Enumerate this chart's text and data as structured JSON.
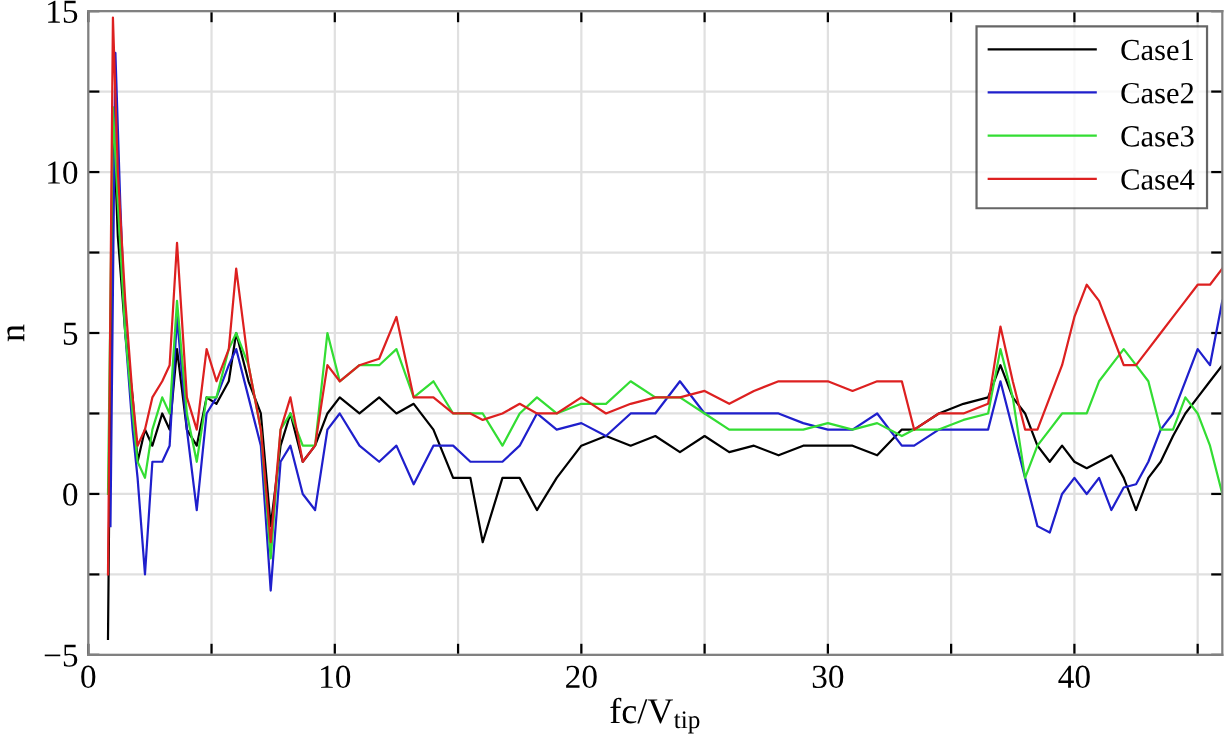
{
  "chart_data": {
    "type": "line",
    "xlabel": "fc/V$_{tip}$",
    "ylabel": "n",
    "x": [
      0.8,
      1.0,
      1.2,
      1.5,
      1.8,
      2.0,
      2.3,
      2.6,
      3.0,
      3.3,
      3.6,
      4.0,
      4.4,
      4.8,
      5.2,
      5.7,
      6.0,
      6.5,
      7.0,
      7.4,
      7.8,
      8.2,
      8.7,
      9.2,
      9.7,
      10.2,
      11,
      11.8,
      12.5,
      13.2,
      14,
      14.8,
      15.5,
      16,
      16.8,
      17.5,
      18.2,
      19,
      20,
      21,
      22,
      23,
      24,
      25,
      26,
      27,
      28,
      29,
      30,
      31,
      32,
      33,
      33.5,
      34.5,
      35.5,
      36.5,
      37,
      37.5,
      38,
      38.5,
      39,
      39.5,
      40,
      40.5,
      41,
      41.5,
      42,
      42.5,
      43,
      43.5,
      44,
      44.5,
      45,
      45.5,
      46
    ],
    "series": [
      {
        "name": "Case1",
        "color": "#000000",
        "values": [
          -4.5,
          12,
          8,
          5,
          3,
          1,
          2,
          1.5,
          2.5,
          2,
          4.5,
          2,
          1.5,
          3,
          2.8,
          3.5,
          5,
          3.5,
          2.5,
          -1,
          1.5,
          2.5,
          1,
          1.5,
          2.5,
          3,
          2.5,
          3,
          2.5,
          2.8,
          2,
          0.5,
          0.5,
          -1.5,
          0.5,
          0.5,
          -0.5,
          0.5,
          1.5,
          1.8,
          1.5,
          1.8,
          1.3,
          1.8,
          1.3,
          1.5,
          1.2,
          1.5,
          1.5,
          1.5,
          1.2,
          2,
          2,
          2.5,
          2.8,
          3,
          4,
          3,
          2.5,
          1.5,
          1,
          1.5,
          1,
          0.8,
          1,
          1.2,
          0.5,
          -0.5,
          0.5,
          1,
          1.8,
          2.5,
          3,
          3.5,
          4
        ]
      },
      {
        "name": "Case2",
        "color": "#1f1fcc",
        "x": [
          0.9,
          1.1,
          1.3,
          1.5,
          1.8,
          2.0,
          2.3,
          2.6,
          3.0,
          3.3,
          3.6,
          4.0,
          4.4,
          4.8,
          5.2,
          5.7,
          6.0,
          6.5,
          7.0,
          7.4,
          7.8,
          8.2,
          8.7,
          9.2,
          9.7,
          10.2,
          11,
          11.8,
          12.5,
          13.2,
          14,
          14.8,
          15.5,
          16,
          16.8,
          17.5,
          18.2,
          19,
          20,
          21,
          22,
          23,
          24,
          25,
          26,
          27,
          28,
          29,
          30,
          31,
          32,
          33,
          33.5,
          34.5,
          35.5,
          36.5,
          37,
          37.5,
          38,
          38.5,
          39,
          39.5,
          40,
          40.5,
          41,
          41.5,
          42,
          42.5,
          43,
          43.5,
          44,
          44.5,
          45,
          45.5,
          46
        ],
        "values": [
          -1,
          13.7,
          9,
          5,
          2,
          0.5,
          -2.5,
          1,
          1,
          1.5,
          5.5,
          2,
          -0.5,
          2.5,
          3,
          4,
          4.5,
          3,
          1.5,
          -3,
          1,
          1.5,
          0,
          -0.5,
          2,
          2.5,
          1.5,
          1,
          1.5,
          0.3,
          1.5,
          1.5,
          1,
          1,
          1,
          1.5,
          2.5,
          2,
          2.2,
          1.8,
          2.5,
          2.5,
          3.5,
          2.5,
          2.5,
          2.5,
          2.5,
          2.2,
          2,
          2,
          2.5,
          1.5,
          1.5,
          2,
          2,
          2,
          3.5,
          2,
          0.5,
          -1,
          -1.2,
          0,
          0.5,
          0,
          0.5,
          -0.5,
          0.2,
          0.3,
          1,
          2,
          2.5,
          3.5,
          4.5,
          4,
          6
        ]
      },
      {
        "name": "Case3",
        "color": "#33dd33",
        "values": [
          0,
          12,
          9,
          5,
          2.5,
          1,
          0.5,
          2,
          3,
          2.5,
          6,
          2.5,
          1,
          3,
          3,
          4.5,
          5,
          4,
          2,
          -2,
          2,
          2.5,
          1.5,
          1.5,
          5,
          3.5,
          4,
          4,
          4.5,
          3,
          3.5,
          2.5,
          2.5,
          2.5,
          1.5,
          2.5,
          3,
          2.5,
          2.8,
          2.8,
          3.5,
          3,
          3,
          2.5,
          2,
          2,
          2,
          2,
          2.2,
          2,
          2.2,
          1.8,
          2,
          2,
          2.3,
          2.5,
          4.5,
          3,
          0.5,
          1.5,
          2,
          2.5,
          2.5,
          2.5,
          3.5,
          4,
          4.5,
          4,
          3.5,
          2,
          2,
          3,
          2.5,
          1.5,
          0
        ]
      },
      {
        "name": "Case4",
        "color": "#dd2020",
        "values": [
          -2.5,
          14.8,
          10,
          6,
          3,
          1.5,
          2,
          3,
          3.5,
          4,
          7.8,
          3,
          2,
          4.5,
          3.5,
          4.5,
          7,
          4,
          2,
          -1.5,
          2,
          3,
          1,
          1.5,
          4,
          3.5,
          4,
          4.2,
          5.5,
          3,
          3,
          2.5,
          2.5,
          2.3,
          2.5,
          2.8,
          2.5,
          2.5,
          3,
          2.5,
          2.8,
          3,
          3,
          3.2,
          2.8,
          3.2,
          3.5,
          3.5,
          3.5,
          3.2,
          3.5,
          3.5,
          2,
          2.5,
          2.5,
          2.8,
          5.2,
          3.5,
          2,
          2,
          3,
          4,
          5.5,
          6.5,
          6,
          5,
          4,
          4,
          4.5,
          5,
          5.5,
          6,
          6.5,
          6.5,
          7
        ]
      }
    ],
    "xlim": [
      0,
      46
    ],
    "ylim": [
      -5,
      15
    ],
    "xticks": [
      0,
      {
        "value": 5,
        "label": null
      },
      10,
      {
        "value": 15,
        "label": null
      },
      20,
      {
        "value": 25,
        "label": null
      },
      30,
      {
        "value": 35,
        "label": null
      },
      40,
      {
        "value": 45,
        "label": null
      }
    ],
    "yticks": [
      -5,
      {
        "value": -2.5,
        "label": null
      },
      0,
      {
        "value": 2.5,
        "label": null
      },
      5,
      {
        "value": 7.5,
        "label": null
      },
      10,
      {
        "value": 12.5,
        "label": null
      },
      15
    ],
    "grid": true,
    "legend": "top right",
    "line_style": "solid",
    "marker": "none"
  }
}
